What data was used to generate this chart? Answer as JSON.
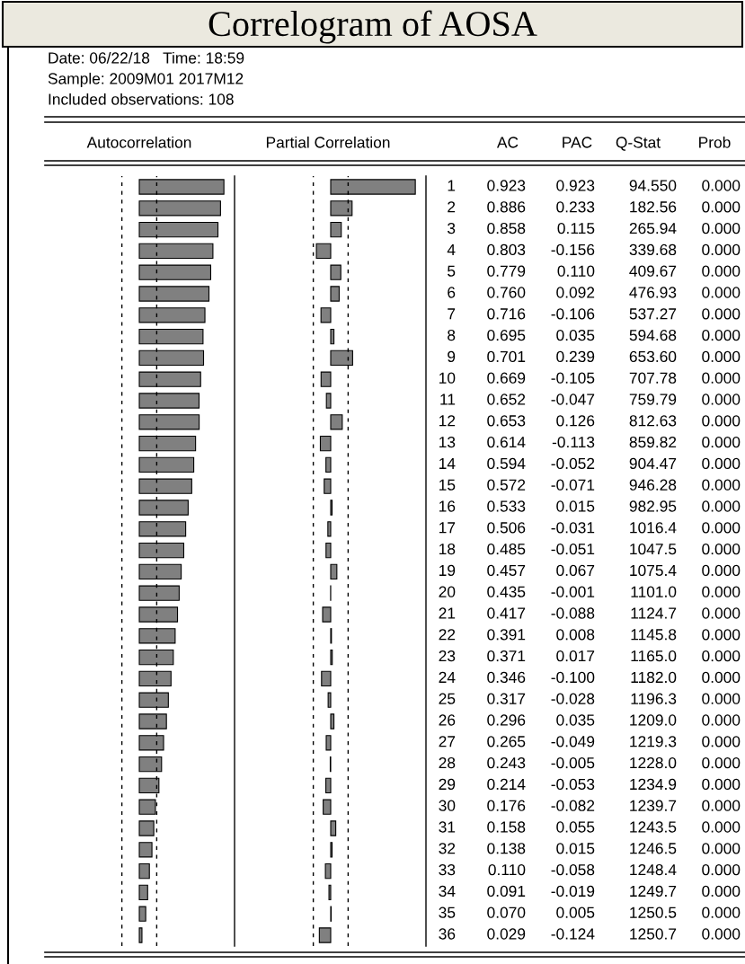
{
  "chart_data": [
    {
      "type": "other",
      "title": "Correlogram of AOSA",
      "annotations": [
        "Date: 06/22/18   Time: 18:59",
        "Sample: 2009M01 2017M12",
        "Included observations: 108"
      ]
    },
    {
      "type": "bar",
      "orientation": "horizontal",
      "title": "Autocorrelation",
      "annotations": [
        "AC"
      ],
      "color": "#808080",
      "tick_labels": false,
      "categories": [
        null,
        null,
        null,
        null,
        null,
        null,
        null,
        null,
        null,
        null,
        null,
        null,
        null,
        null,
        null,
        null,
        null,
        null,
        null,
        null,
        null,
        null,
        null,
        null,
        null,
        null,
        null,
        null,
        null,
        null,
        null,
        null,
        null,
        null,
        null,
        null
      ],
      "values": [
        0.923,
        0.886,
        0.858,
        0.803,
        0.779,
        0.76,
        0.716,
        0.695,
        0.701,
        0.669,
        0.652,
        0.653,
        0.614,
        0.594,
        0.572,
        0.533,
        0.506,
        0.485,
        0.457,
        0.435,
        0.417,
        0.391,
        0.371,
        0.346,
        0.317,
        0.296,
        0.265,
        0.243,
        0.214,
        0.176,
        0.158,
        0.138,
        0.11,
        0.091,
        0.07,
        0.029
      ],
      "value_labels": [
        "0.923",
        "0.886",
        "0.858",
        "0.803",
        "0.779",
        "0.760",
        "0.716",
        "0.695",
        "0.701",
        "0.669",
        "0.652",
        "0.653",
        "0.614",
        "0.594",
        "0.572",
        "0.533",
        "0.506",
        "0.485",
        "0.457",
        "0.435",
        "0.417",
        "0.391",
        "0.371",
        "0.346",
        "0.317",
        "0.296",
        "0.265",
        "0.243",
        "0.214",
        "0.176",
        "0.158",
        "0.138",
        "0.110",
        "0.091",
        "0.070",
        "0.029"
      ],
      "ref_lines": [
        {
          "axis": "x",
          "value": -0.19,
          "line_style": "dashed",
          "color": "#000000"
        },
        {
          "axis": "x",
          "value": 0.19,
          "line_style": "dashed",
          "color": "#000000"
        }
      ]
    },
    {
      "type": "bar",
      "orientation": "horizontal",
      "title": "Partial Correlation",
      "annotations": [
        "PAC"
      ],
      "color": "#808080",
      "tick_labels": "y",
      "categories": [
        "1",
        "2",
        "3",
        "4",
        "5",
        "6",
        "7",
        "8",
        "9",
        "10",
        "11",
        "12",
        "13",
        "14",
        "15",
        "16",
        "17",
        "18",
        "19",
        "20",
        "21",
        "22",
        "23",
        "24",
        "25",
        "26",
        "27",
        "28",
        "29",
        "30",
        "31",
        "32",
        "33",
        "34",
        "35",
        "36"
      ],
      "values": [
        0.923,
        0.233,
        0.115,
        -0.156,
        0.11,
        0.092,
        -0.106,
        0.035,
        0.239,
        -0.105,
        -0.047,
        0.126,
        -0.113,
        -0.052,
        -0.071,
        0.015,
        -0.031,
        -0.051,
        0.067,
        -0.001,
        -0.088,
        0.008,
        0.017,
        -0.1,
        -0.028,
        0.035,
        -0.049,
        -0.005,
        -0.053,
        -0.082,
        0.055,
        0.015,
        -0.058,
        -0.019,
        0.005,
        -0.124
      ],
      "value_labels": [
        "0.923",
        "0.233",
        "0.115",
        "-0.156",
        "0.110",
        "0.092",
        "-0.106",
        "0.035",
        "0.239",
        "-0.105",
        "-0.047",
        "0.126",
        "-0.113",
        "-0.052",
        "-0.071",
        "0.015",
        "-0.031",
        "-0.051",
        "0.067",
        "-0.001",
        "-0.088",
        "0.008",
        "0.017",
        "-0.100",
        "-0.028",
        "0.035",
        "-0.049",
        "-0.005",
        "-0.053",
        "-0.082",
        "0.055",
        "0.015",
        "-0.058",
        "-0.019",
        "0.005",
        "-0.124"
      ],
      "ref_lines": [
        {
          "axis": "x",
          "value": -0.19,
          "line_style": "dashed",
          "color": "#000000"
        },
        {
          "axis": "x",
          "value": 0.19,
          "line_style": "dashed",
          "color": "#000000"
        }
      ]
    },
    {
      "type": "other",
      "title": "Q-Stat",
      "annotations": [
        "94.550",
        "182.56",
        "265.94",
        "339.68",
        "409.67",
        "476.93",
        "537.27",
        "594.68",
        "653.60",
        "707.78",
        "759.79",
        "812.63",
        "859.82",
        "904.47",
        "946.28",
        "982.95",
        "1016.4",
        "1047.5",
        "1075.4",
        "1101.0",
        "1124.7",
        "1145.8",
        "1165.0",
        "1182.0",
        "1196.3",
        "1209.0",
        "1219.3",
        "1228.0",
        "1234.9",
        "1239.7",
        "1243.5",
        "1246.5",
        "1248.4",
        "1249.7",
        "1250.5",
        "1250.7"
      ]
    },
    {
      "type": "other",
      "title": "Prob",
      "annotations": [
        "0.000",
        "0.000",
        "0.000",
        "0.000",
        "0.000",
        "0.000",
        "0.000",
        "0.000",
        "0.000",
        "0.000",
        "0.000",
        "0.000",
        "0.000",
        "0.000",
        "0.000",
        "0.000",
        "0.000",
        "0.000",
        "0.000",
        "0.000",
        "0.000",
        "0.000",
        "0.000",
        "0.000",
        "0.000",
        "0.000",
        "0.000",
        "0.000",
        "0.000",
        "0.000",
        "0.000",
        "0.000",
        "0.000",
        "0.000",
        "0.000",
        "0.000"
      ]
    }
  ]
}
